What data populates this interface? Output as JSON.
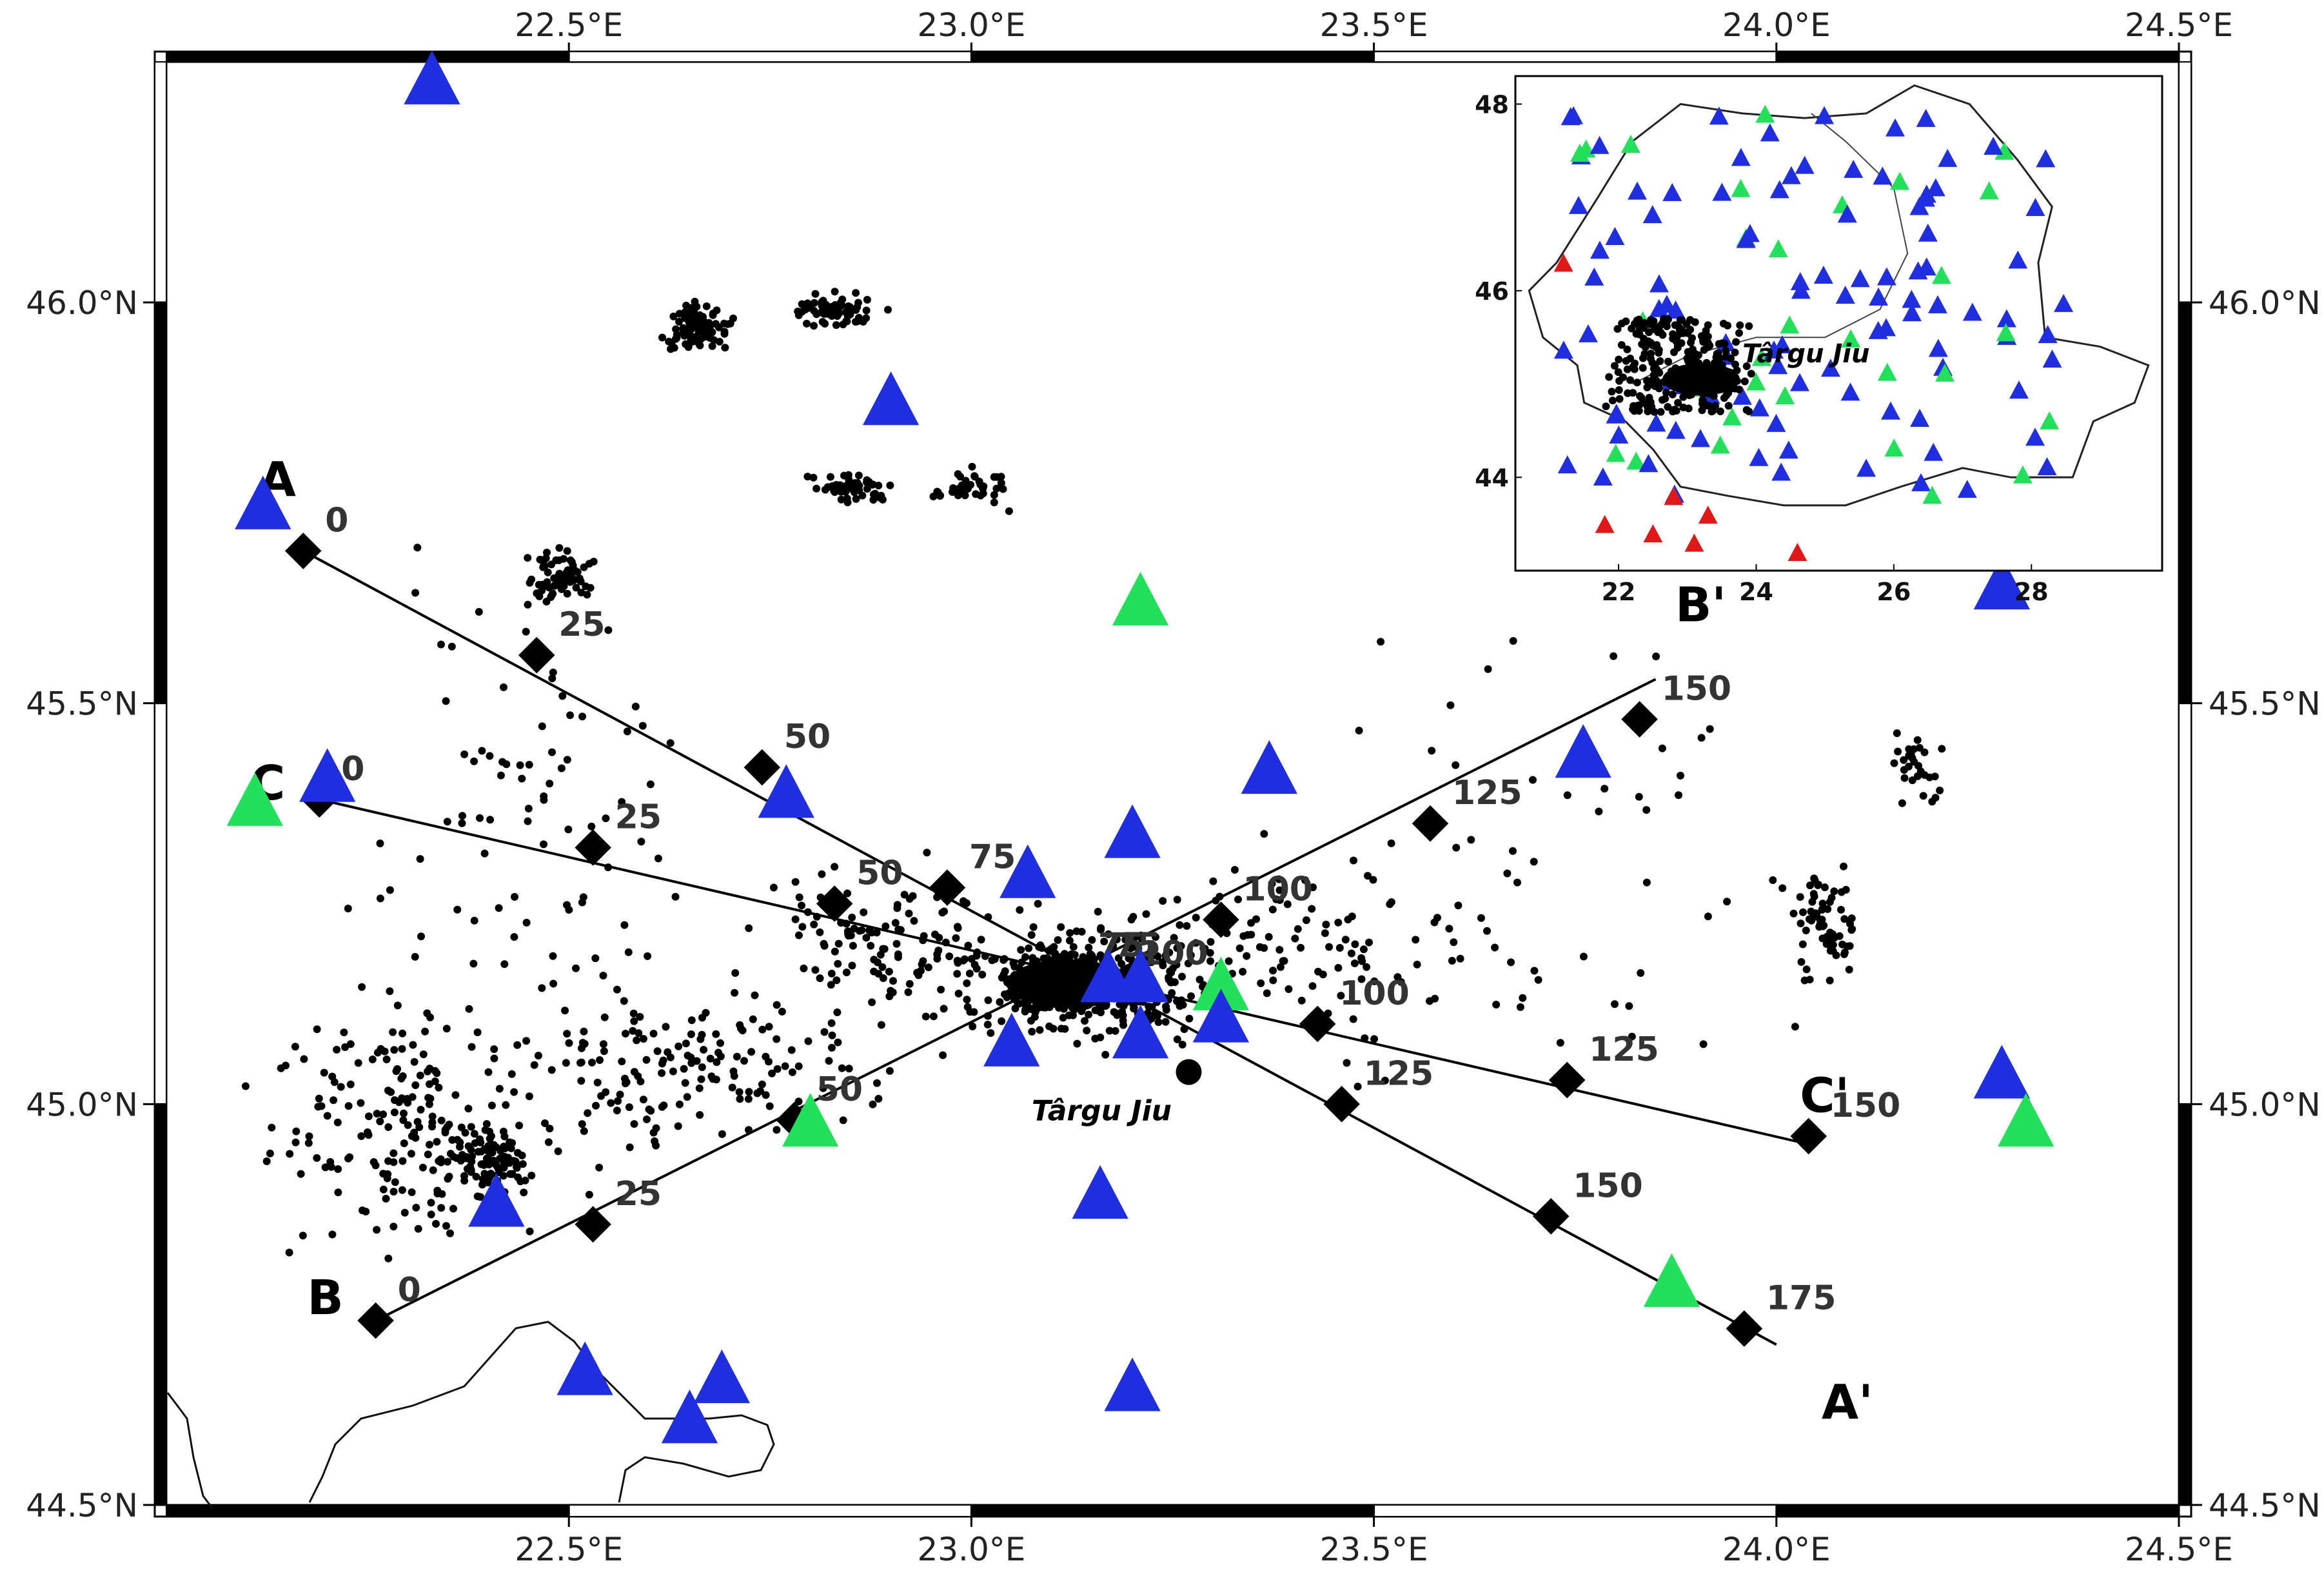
{
  "map": {
    "x_ticks": [
      {
        "lon": 22.5,
        "label": "22.5°E"
      },
      {
        "lon": 23.0,
        "label": "23.0°E"
      },
      {
        "lon": 23.5,
        "label": "23.5°E"
      },
      {
        "lon": 24.0,
        "label": "24.0°E"
      },
      {
        "lon": 24.5,
        "label": "24.5°E"
      }
    ],
    "y_ticks": [
      {
        "lat": 46.0,
        "label": "46.0°N"
      },
      {
        "lat": 45.5,
        "label": "45.5°N"
      },
      {
        "lat": 45.0,
        "label": "45.0°N"
      },
      {
        "lat": 44.5,
        "label": "44.5°N"
      }
    ],
    "city": {
      "name": "Târgu Jiu",
      "lon": 23.27,
      "lat": 45.04
    },
    "colors": {
      "blue_station": "#1f2fe0",
      "green_station": "#22e05a",
      "red_station": "#e01818",
      "profile": "#000000"
    }
  },
  "profiles": [
    {
      "id": "A",
      "start_label": "A",
      "end_label": "A'",
      "start": {
        "lon": 22.17,
        "lat": 45.69
      },
      "end": {
        "lon": 24.0,
        "lat": 44.7
      },
      "marks": [
        {
          "km": "0",
          "lon": 22.17,
          "lat": 45.69
        },
        {
          "km": "25",
          "lon": 22.46,
          "lat": 45.56
        },
        {
          "km": "50",
          "lon": 22.74,
          "lat": 45.42
        },
        {
          "km": "75",
          "lon": 22.97,
          "lat": 45.27
        },
        {
          "km": "100",
          "lon": 23.18,
          "lat": 45.15
        },
        {
          "km": "125",
          "lon": 23.46,
          "lat": 45.0
        },
        {
          "km": "150",
          "lon": 23.72,
          "lat": 44.86
        },
        {
          "km": "175",
          "lon": 23.96,
          "lat": 44.72
        }
      ]
    },
    {
      "id": "B",
      "start_label": "B",
      "end_label": "B'",
      "start": {
        "lon": 22.26,
        "lat": 44.73
      },
      "end": {
        "lon": 23.85,
        "lat": 45.53
      },
      "marks": [
        {
          "km": "0",
          "lon": 22.26,
          "lat": 44.73
        },
        {
          "km": "25",
          "lon": 22.53,
          "lat": 44.85
        },
        {
          "km": "50",
          "lon": 22.78,
          "lat": 44.98
        },
        {
          "km": "75",
          "lon": 23.15,
          "lat": 45.16
        },
        {
          "km": "100",
          "lon": 23.31,
          "lat": 45.23
        },
        {
          "km": "125",
          "lon": 23.57,
          "lat": 45.35
        },
        {
          "km": "150",
          "lon": 23.83,
          "lat": 45.48
        }
      ]
    },
    {
      "id": "C",
      "start_label": "C",
      "end_label": "C'",
      "start": {
        "lon": 22.19,
        "lat": 45.38
      },
      "end": {
        "lon": 24.04,
        "lat": 44.95
      },
      "marks": [
        {
          "km": "0",
          "lon": 22.19,
          "lat": 45.38
        },
        {
          "km": "25",
          "lon": 22.53,
          "lat": 45.32
        },
        {
          "km": "50",
          "lon": 22.83,
          "lat": 45.25
        },
        {
          "km": "75",
          "lon": 23.13,
          "lat": 45.16
        },
        {
          "km": "100",
          "lon": 23.43,
          "lat": 45.1
        },
        {
          "km": "125",
          "lon": 23.74,
          "lat": 45.03
        },
        {
          "km": "150",
          "lon": 24.04,
          "lat": 44.96
        }
      ]
    }
  ],
  "stations": [
    {
      "lon": 22.33,
      "lat": 46.28,
      "type": "blue"
    },
    {
      "lon": 22.12,
      "lat": 45.75,
      "type": "blue"
    },
    {
      "lon": 22.9,
      "lat": 45.88,
      "type": "blue"
    },
    {
      "lon": 23.21,
      "lat": 45.63,
      "type": "green"
    },
    {
      "lon": 22.11,
      "lat": 45.38,
      "type": "green"
    },
    {
      "lon": 22.2,
      "lat": 45.41,
      "type": "blue"
    },
    {
      "lon": 22.77,
      "lat": 45.39,
      "type": "blue"
    },
    {
      "lon": 23.07,
      "lat": 45.29,
      "type": "blue"
    },
    {
      "lon": 23.2,
      "lat": 45.34,
      "type": "blue"
    },
    {
      "lon": 23.37,
      "lat": 45.42,
      "type": "blue"
    },
    {
      "lon": 23.76,
      "lat": 45.44,
      "type": "blue"
    },
    {
      "lon": 23.17,
      "lat": 45.16,
      "type": "blue"
    },
    {
      "lon": 23.21,
      "lat": 45.16,
      "type": "blue"
    },
    {
      "lon": 23.31,
      "lat": 45.15,
      "type": "green"
    },
    {
      "lon": 23.31,
      "lat": 45.11,
      "type": "blue"
    },
    {
      "lon": 23.21,
      "lat": 45.09,
      "type": "blue"
    },
    {
      "lon": 23.05,
      "lat": 45.08,
      "type": "blue"
    },
    {
      "lon": 22.8,
      "lat": 44.98,
      "type": "green"
    },
    {
      "lon": 22.41,
      "lat": 44.88,
      "type": "blue"
    },
    {
      "lon": 23.16,
      "lat": 44.89,
      "type": "blue"
    },
    {
      "lon": 22.52,
      "lat": 44.67,
      "type": "blue"
    },
    {
      "lon": 22.69,
      "lat": 44.66,
      "type": "blue"
    },
    {
      "lon": 22.65,
      "lat": 44.61,
      "type": "blue"
    },
    {
      "lon": 23.2,
      "lat": 44.65,
      "type": "blue"
    },
    {
      "lon": 23.87,
      "lat": 44.78,
      "type": "green"
    },
    {
      "lon": 24.28,
      "lat": 45.04,
      "type": "blue"
    },
    {
      "lon": 24.31,
      "lat": 44.98,
      "type": "green"
    },
    {
      "lon": 24.28,
      "lat": 45.65,
      "type": "blue"
    }
  ],
  "inset": {
    "x_ticks": [
      {
        "lon": 22,
        "label": "22"
      },
      {
        "lon": 24,
        "label": "24"
      },
      {
        "lon": 26,
        "label": "26"
      },
      {
        "lon": 28,
        "label": "28"
      }
    ],
    "y_ticks": [
      {
        "lat": 48,
        "label": "48"
      },
      {
        "lat": 46,
        "label": "46"
      },
      {
        "lat": 44,
        "label": "44"
      }
    ],
    "city_label": "Târgu Jiu"
  }
}
